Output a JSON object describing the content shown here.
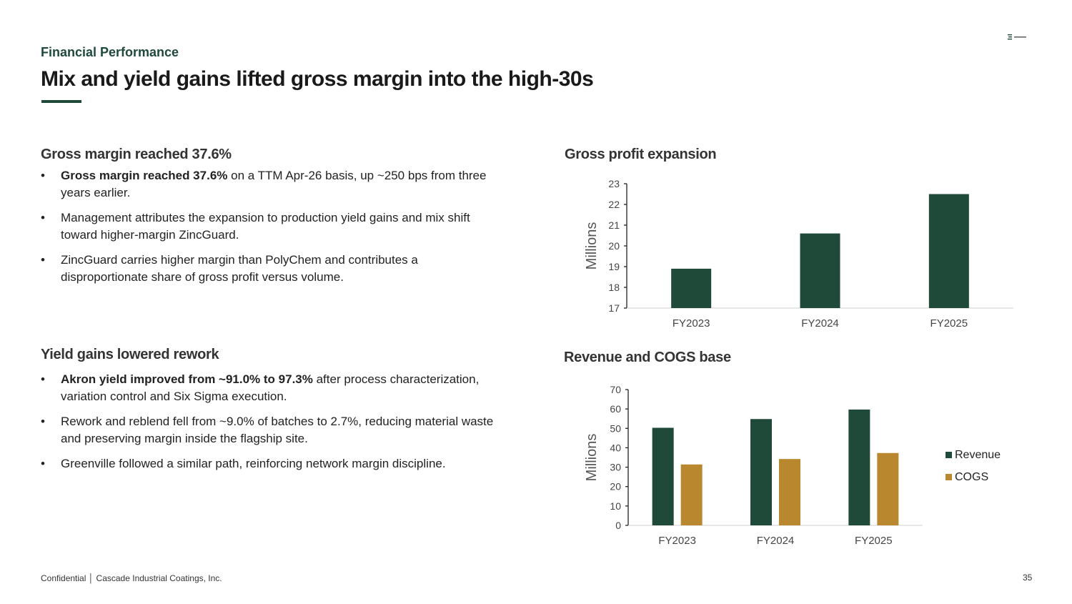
{
  "header": {
    "eyebrow": "Financial Performance",
    "title": "Mix and yield gains lifted gross margin into the high-30s"
  },
  "left": {
    "section1": {
      "heading": "Gross margin reached 37.6%",
      "bullets": [
        {
          "bold": "Gross margin reached 37.6%",
          "text": " on a TTM Apr-26 basis, up ~250 bps from three years earlier."
        },
        {
          "bold": "",
          "text": "Management attributes the expansion to production yield gains and mix shift toward higher-margin ZincGuard."
        },
        {
          "bold": "",
          "text": "ZincGuard carries higher margin than PolyChem and contributes a disproportionate share of gross profit versus volume."
        }
      ]
    },
    "section2": {
      "heading": "Yield gains lowered rework",
      "bullets": [
        {
          "bold": "Akron yield improved from ~91.0% to 97.3%",
          "text": " after process characterization, variation control and Six Sigma execution."
        },
        {
          "bold": "",
          "text": "Rework and reblend fell from ~9.0% of batches to 2.7%, reducing material waste and preserving margin inside the flagship site."
        },
        {
          "bold": "",
          "text": "Greenville followed a similar path, reinforcing network margin discipline."
        }
      ]
    }
  },
  "footer": {
    "confidential": "Confidential │ Cascade Industrial Coatings, Inc.",
    "page": "35"
  },
  "colors": {
    "green": "#1f4a3a",
    "gold": "#b8872e"
  },
  "chart_data": [
    {
      "type": "bar",
      "title": "Gross profit expansion",
      "ylabel": "Millions",
      "categories": [
        "FY2023",
        "FY2024",
        "FY2025"
      ],
      "series": [
        {
          "values": [
            18.9,
            20.6,
            22.5
          ]
        }
      ],
      "ylim": [
        17,
        23
      ],
      "yticks": [
        17,
        18,
        19,
        20,
        21,
        22,
        23
      ],
      "grid": false
    },
    {
      "type": "bar",
      "title": "Revenue and COGS base",
      "ylabel": "Millions",
      "categories": [
        "FY2023",
        "FY2024",
        "FY2025"
      ],
      "series": [
        {
          "name": "Revenue",
          "values": [
            50.3,
            54.8,
            59.7
          ]
        },
        {
          "name": "COGS",
          "values": [
            31.4,
            34.2,
            37.3
          ]
        }
      ],
      "ylim": [
        0,
        70
      ],
      "yticks": [
        0,
        10,
        20,
        30,
        40,
        50,
        60,
        70
      ],
      "grid": false,
      "legend": "right"
    }
  ]
}
